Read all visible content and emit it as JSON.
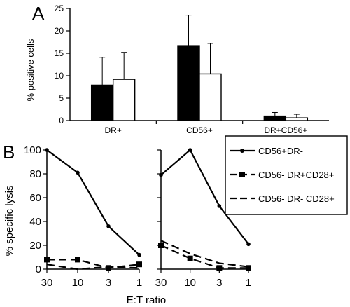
{
  "panel_labels": [
    "A",
    "B"
  ],
  "chart_data": [
    {
      "type": "bar",
      "panel": "A",
      "categories": [
        "DR+",
        "CD56+",
        "DR+CD56+"
      ],
      "series": [
        {
          "values": [
            7.9,
            16.7,
            1.0
          ],
          "errors": [
            6.2,
            6.8,
            0.8
          ],
          "color": "#000000"
        },
        {
          "values": [
            9.2,
            10.4,
            0.6
          ],
          "errors": [
            6.0,
            6.8,
            0.8
          ],
          "color": "#ffffff"
        }
      ],
      "ylabel": "% positive cells",
      "ylim": [
        0,
        25
      ],
      "yticks": [
        0,
        5,
        10,
        15,
        20,
        25
      ]
    },
    {
      "type": "line",
      "panel": "B-left",
      "x": [
        30,
        10,
        3,
        1
      ],
      "series": [
        {
          "name": "CD56+DR-",
          "values": [
            100,
            81,
            36,
            12
          ]
        },
        {
          "name": "CD56- DR+CD28+",
          "values": [
            8,
            8,
            1,
            4
          ]
        },
        {
          "name": "CD56- DR- CD28+",
          "values": [
            4,
            0,
            2,
            1
          ]
        }
      ],
      "xlabel": "E:T ratio",
      "ylabel": "% specific lysis",
      "ylim": [
        0,
        100
      ],
      "yticks": [
        0,
        20,
        40,
        60,
        80,
        100
      ]
    },
    {
      "type": "line",
      "panel": "B-right",
      "x": [
        30,
        10,
        3,
        1
      ],
      "series": [
        {
          "name": "CD56+DR-",
          "values": [
            79,
            100,
            53,
            21
          ]
        },
        {
          "name": "CD56- DR+CD28+",
          "values": [
            20,
            9,
            1,
            1
          ]
        },
        {
          "name": "CD56- DR- CD28+",
          "values": [
            24,
            13,
            5,
            2
          ]
        }
      ],
      "xlabel": "E:T ratio",
      "ylim": [
        0,
        100
      ]
    }
  ],
  "legend": {
    "placement": "right",
    "entries": [
      {
        "label": "CD56+DR-",
        "marker": "circle",
        "dash": "solid"
      },
      {
        "label": "CD56- DR+CD28+",
        "marker": "square",
        "dash": "dashed"
      },
      {
        "label": "CD56- DR- CD28+",
        "marker": "none",
        "dash": "dashed"
      }
    ]
  }
}
